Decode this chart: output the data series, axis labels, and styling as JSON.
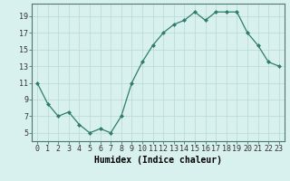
{
  "x": [
    0,
    1,
    2,
    3,
    4,
    5,
    6,
    7,
    8,
    9,
    10,
    11,
    12,
    13,
    14,
    15,
    16,
    17,
    18,
    19,
    20,
    21,
    22,
    23
  ],
  "y": [
    11,
    8.5,
    7,
    7.5,
    6,
    5,
    5.5,
    5,
    7,
    11,
    13.5,
    15.5,
    17,
    18,
    18.5,
    19.5,
    18.5,
    19.5,
    19.5,
    19.5,
    17,
    15.5,
    13.5,
    13
  ],
  "line_color": "#2e7d6e",
  "marker_color": "#2e7d6e",
  "bg_color": "#d8f0ee",
  "grid_color": "#b8d8d4",
  "xlabel": "Humidex (Indice chaleur)",
  "yticks": [
    5,
    7,
    9,
    11,
    13,
    15,
    17,
    19
  ],
  "ylim": [
    4.0,
    20.5
  ],
  "xlim": [
    -0.5,
    23.5
  ],
  "xticks": [
    0,
    1,
    2,
    3,
    4,
    5,
    6,
    7,
    8,
    9,
    10,
    11,
    12,
    13,
    14,
    15,
    16,
    17,
    18,
    19,
    20,
    21,
    22,
    23
  ],
  "xlabel_fontsize": 7.0,
  "tick_fontsize": 6.0
}
